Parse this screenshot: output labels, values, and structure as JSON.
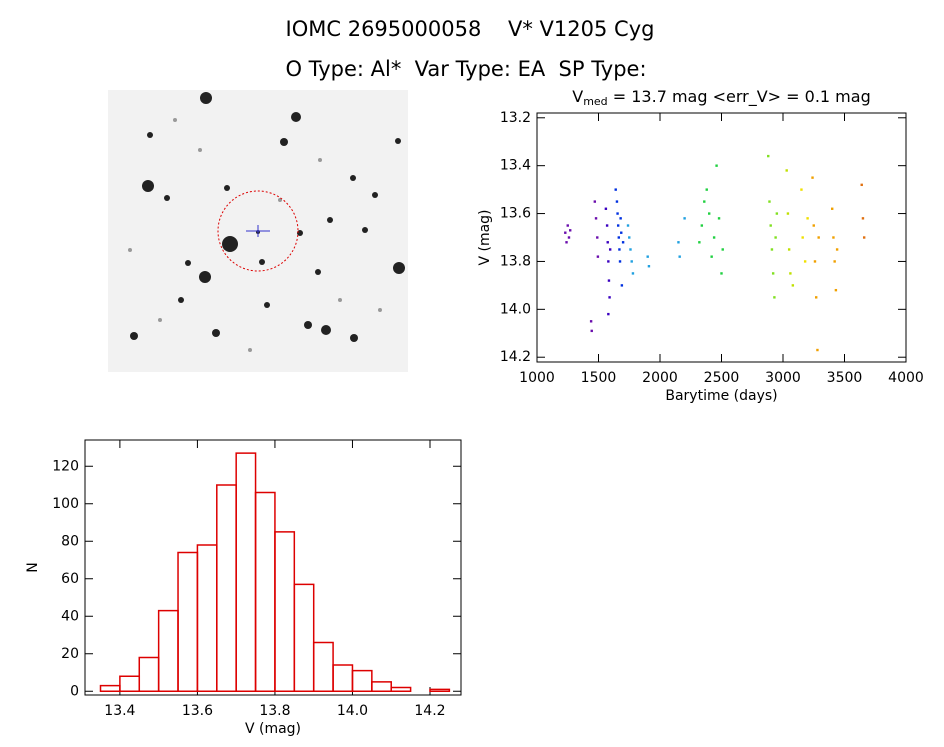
{
  "title": "IOMC 2695000058    V* V1205 Cyg",
  "subtitle": "O Type: Al*  Var Type: EA  SP Type:",
  "chart_data": [
    {
      "type": "scatter",
      "title": "V",
      "title_sub": "med",
      "title_rest": " = 13.7 mag <err_V> = 0.1 mag",
      "x_label": "Barytime (days)",
      "y_label": "V (mag)",
      "xlim": [
        1000,
        4000
      ],
      "xticks": [
        1000,
        1500,
        2000,
        2500,
        3000,
        3500,
        4000
      ],
      "ylim": [
        13.18,
        14.22
      ],
      "invert_y": true,
      "yticks": [
        13.2,
        13.4,
        13.6,
        13.8,
        {
          "value": 14,
          "label": "14.0"
        },
        14.2
      ],
      "series": [
        {
          "color": "#6a0dad",
          "x": [
            1230,
            1240,
            1250,
            1260,
            1270,
            1470,
            1480,
            1490,
            1495,
            1440,
            1445
          ],
          "values": [
            13.68,
            13.72,
            13.65,
            13.7,
            13.67,
            13.55,
            13.62,
            13.7,
            13.78,
            14.05,
            14.09
          ]
        },
        {
          "color": "#3a00c0",
          "x": [
            1560,
            1570,
            1575,
            1580,
            1585,
            1590,
            1595,
            1580
          ],
          "values": [
            13.58,
            13.65,
            13.72,
            13.8,
            13.88,
            13.95,
            13.75,
            14.02
          ]
        },
        {
          "color": "#0030e0",
          "x": [
            1640,
            1650,
            1655,
            1660,
            1665,
            1670,
            1675,
            1680,
            1685,
            1690,
            1700
          ],
          "values": [
            13.5,
            13.55,
            13.6,
            13.65,
            13.7,
            13.75,
            13.8,
            13.62,
            13.68,
            13.9,
            13.72
          ]
        },
        {
          "color": "#20a0e0",
          "x": [
            1740,
            1750,
            1760,
            1770,
            1780,
            1900,
            1910,
            2150,
            2160,
            2200
          ],
          "values": [
            13.65,
            13.7,
            13.75,
            13.8,
            13.85,
            13.78,
            13.82,
            13.72,
            13.78,
            13.62
          ]
        },
        {
          "color": "#20d040",
          "x": [
            2320,
            2340,
            2360,
            2380,
            2400,
            2420,
            2440,
            2460,
            2480,
            2500,
            2510
          ],
          "values": [
            13.72,
            13.65,
            13.55,
            13.5,
            13.6,
            13.78,
            13.7,
            13.4,
            13.62,
            13.85,
            13.75
          ]
        },
        {
          "color": "#80e020",
          "x": [
            2880,
            2890,
            2900,
            2910,
            2920,
            2930,
            2940,
            2950
          ],
          "values": [
            13.36,
            13.55,
            13.65,
            13.75,
            13.85,
            13.95,
            13.7,
            13.6
          ]
        },
        {
          "color": "#c0e000",
          "x": [
            3030,
            3040,
            3050,
            3060,
            3080
          ],
          "values": [
            13.42,
            13.6,
            13.75,
            13.85,
            13.9
          ]
        },
        {
          "color": "#f0e000",
          "x": [
            3150,
            3160,
            3180,
            3200
          ],
          "values": [
            13.5,
            13.7,
            13.8,
            13.62
          ]
        },
        {
          "color": "#f0a000",
          "x": [
            3240,
            3250,
            3260,
            3270,
            3280,
            3290,
            3400,
            3410,
            3420,
            3430,
            3440
          ],
          "values": [
            13.45,
            13.65,
            13.8,
            13.95,
            14.17,
            13.7,
            13.58,
            13.7,
            13.8,
            13.92,
            13.75
          ]
        },
        {
          "color": "#e07010",
          "x": [
            3640,
            3650,
            3660
          ],
          "values": [
            13.48,
            13.62,
            13.7
          ]
        }
      ]
    },
    {
      "type": "histogram",
      "color": "#dd0000",
      "x_label": "V (mag)",
      "y_label": "N",
      "bins": [
        13.35,
        13.4,
        13.45,
        13.5,
        13.55,
        13.6,
        13.65,
        13.7,
        13.75,
        13.8,
        13.85,
        13.9,
        13.95,
        14.0,
        14.05,
        14.1,
        14.15,
        14.2,
        14.25
      ],
      "counts": [
        3,
        8,
        18,
        43,
        74,
        78,
        110,
        127,
        106,
        85,
        57,
        26,
        14,
        11,
        5,
        2,
        0,
        1
      ],
      "xlim": [
        13.31,
        14.28
      ],
      "xticks": [
        13.4,
        13.6,
        13.8,
        {
          "value": 14,
          "label": "14.0"
        },
        14.2
      ],
      "ylim": [
        -2,
        134
      ],
      "yticks": [
        0,
        20,
        40,
        60,
        80,
        100,
        120
      ]
    }
  ]
}
